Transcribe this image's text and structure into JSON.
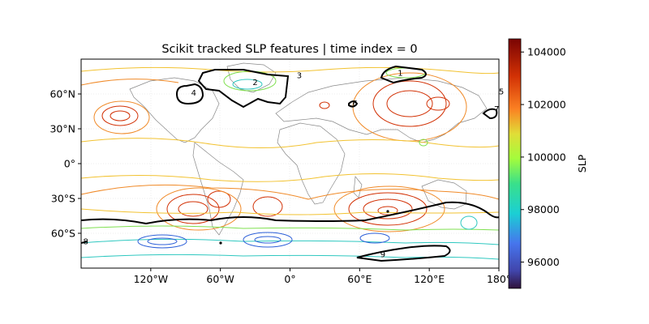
{
  "title": "Scikit tracked SLP features | time index = 0",
  "x_ticks": [
    "120°W",
    "60°W",
    "0°",
    "60°E",
    "120°E",
    "180°"
  ],
  "x_tick_values": [
    -120,
    -60,
    0,
    60,
    120,
    180
  ],
  "y_ticks": [
    "60°N",
    "30°N",
    "0°",
    "30°S",
    "60°S"
  ],
  "y_tick_values": [
    60,
    30,
    0,
    -30,
    -60
  ],
  "colorbar": {
    "label": "SLP",
    "ticks": [
      "104000",
      "102000",
      "100000",
      "98000",
      "96000"
    ],
    "tick_values": [
      104000,
      102000,
      100000,
      98000,
      96000
    ],
    "range": [
      95000,
      104500
    ]
  },
  "features": [
    {
      "label": "1",
      "lon": 95,
      "lat": 78
    },
    {
      "label": "2",
      "lon": -30,
      "lat": 70
    },
    {
      "label": "3",
      "lon": 8,
      "lat": 76
    },
    {
      "label": "4",
      "lon": -83,
      "lat": 61
    },
    {
      "label": "5",
      "lon": 183,
      "lat": 62
    },
    {
      "label": "6",
      "lon": 56,
      "lat": 52
    },
    {
      "label": "7",
      "lon": 178,
      "lat": 47
    },
    {
      "label": "8",
      "lon": -176,
      "lat": -67
    },
    {
      "label": "9",
      "lon": 80,
      "lat": -78
    }
  ],
  "colors": {
    "high": "#cc3300",
    "mid_high": "#f08a28",
    "mid": "#f2c230",
    "low_mid": "#7fe050",
    "low": "#2fc8c0",
    "very_low": "#2c5fd8",
    "feature_contour": "#000000",
    "coastline": "#888888"
  }
}
